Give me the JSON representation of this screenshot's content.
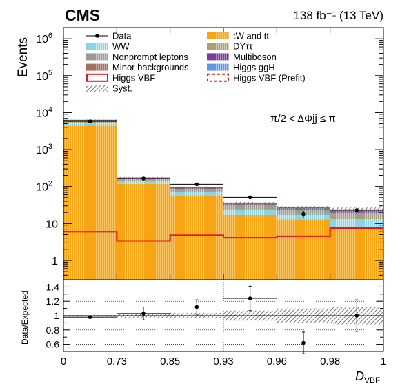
{
  "header": {
    "experiment": "CMS",
    "luminosity": "138 fb⁻¹ (13 TeV)"
  },
  "colors": {
    "tW and tt̄": "#f7a515",
    "WW": "#8cd3e6",
    "DYττ": "#a9a074",
    "Nonprompt leptons": "#9a9a9a",
    "Multiboson": "#7a3d9a",
    "Minor backgrounds": "#a3705e",
    "Higgs ggH": "#5a9be2",
    "Higgs VBF": "#e31a1c",
    "Higgs VBF (Prefit)": "#e31a1c",
    "Syst.": "#7f7f7f",
    "Data": "#000000"
  },
  "chart_data": [
    {
      "type": "bar",
      "ylabel": "Events",
      "xlabel": "D_VBF",
      "yscale": "log",
      "ylim": [
        0.3,
        2000000
      ],
      "bin_edges": [
        0,
        0.73,
        0.85,
        0.93,
        0.96,
        0.98,
        1
      ],
      "tick_labels": [
        "0",
        "0.73",
        "0.85",
        "0.93",
        "0.96",
        "0.98",
        "1"
      ],
      "y_tick_labels": [
        {
          "v": 1000000,
          "base": "10",
          "exp": "6"
        },
        {
          "v": 100000,
          "base": "10",
          "exp": "5"
        },
        {
          "v": 10000,
          "base": "10",
          "exp": "4"
        },
        {
          "v": 1000,
          "base": "10",
          "exp": "3"
        },
        {
          "v": 100,
          "base": "10",
          "exp": "2"
        },
        {
          "v": 10,
          "base": "10",
          "exp": ""
        },
        {
          "v": 1,
          "base": "1",
          "exp": ""
        }
      ],
      "annotation": "π/2 < ΔΦjj ≤ π",
      "stack": [
        {
          "name": "tW and tt̄",
          "values": [
            4400,
            118,
            58,
            17,
            13,
            8
          ]
        },
        {
          "name": "WW",
          "values": [
            800,
            22,
            15,
            7,
            5,
            5
          ]
        },
        {
          "name": "DYττ",
          "values": [
            450,
            12,
            8,
            4,
            3,
            4
          ]
        },
        {
          "name": "Nonprompt leptons",
          "values": [
            260,
            7,
            5,
            3,
            2,
            2.5
          ]
        },
        {
          "name": "Multiboson",
          "values": [
            170,
            6,
            4,
            2,
            1.5,
            2
          ]
        },
        {
          "name": "Minor backgrounds",
          "values": [
            100,
            3,
            2,
            1,
            0.8,
            1
          ]
        },
        {
          "name": "Higgs ggH",
          "values": [
            90,
            3,
            2,
            1.2,
            1,
            1.2
          ]
        }
      ],
      "signal_postfit": {
        "name": "Higgs VBF",
        "values": [
          6,
          3.4,
          4.8,
          4.1,
          4.5,
          7.5
        ]
      },
      "signal_prefit": {
        "name": "Higgs VBF (Prefit)",
        "values": [
          6,
          3.4,
          4.8,
          4.1,
          4.5,
          7.5
        ]
      },
      "data": {
        "name": "Data",
        "values": [
          5800,
          165,
          115,
          51,
          18,
          23
        ],
        "errors": [
          76,
          13,
          11,
          7,
          4.2,
          4.8
        ]
      },
      "legend": [
        {
          "label": "Data",
          "style": "data"
        },
        {
          "label": "tW and tt̄",
          "style": "fill"
        },
        {
          "label": "WW",
          "style": "fill"
        },
        {
          "label": "DYττ",
          "style": "fill"
        },
        {
          "label": "Nonprompt leptons",
          "style": "fill"
        },
        {
          "label": "Multiboson",
          "style": "fill"
        },
        {
          "label": "Minor backgrounds",
          "style": "fill"
        },
        {
          "label": "Higgs ggH",
          "style": "fill"
        },
        {
          "label": "Higgs VBF",
          "style": "line"
        },
        {
          "label": "Higgs VBF (Prefit)",
          "style": "dash"
        },
        {
          "label": "Syst.",
          "style": "hatch"
        }
      ],
      "legend_placement": "top"
    },
    {
      "type": "scatter",
      "ylabel": "Data/Expected",
      "ylim": [
        0.5,
        1.5
      ],
      "y_ticks": [
        0.6,
        0.8,
        1,
        1.2,
        1.4
      ],
      "grid": true,
      "ratio": [
        0.98,
        1.03,
        1.12,
        1.24,
        0.62,
        1.0
      ],
      "ratio_errors": [
        0.02,
        0.09,
        0.1,
        0.17,
        0.15,
        0.22
      ],
      "syst_band": [
        0.01,
        0.03,
        0.04,
        0.07,
        0.1,
        0.12
      ]
    }
  ]
}
